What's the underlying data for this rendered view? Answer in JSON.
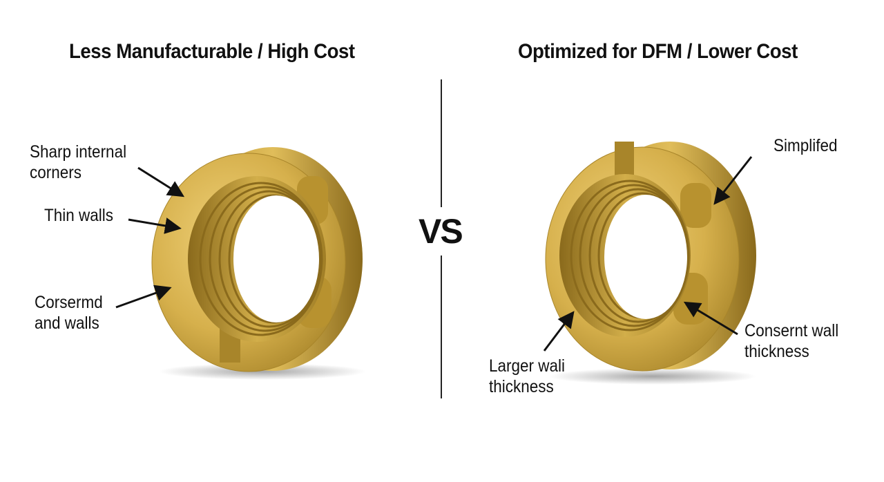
{
  "left_panel": {
    "title": "Less Manufacturable / High Cost",
    "labels": [
      "Sharp internal\ncorners",
      "Thin walls",
      "Corsermd\nand walls"
    ]
  },
  "right_panel": {
    "title": "Optimized for DFM / Lower Cost",
    "labels": [
      "Simplifed",
      "Consernt wall\nthickness",
      "Larger wali\nthickness"
    ]
  },
  "separator_text": "VS",
  "colors": {
    "brass": "#d4b04a",
    "brass_dark": "#9a7a22",
    "text": "#111111"
  }
}
